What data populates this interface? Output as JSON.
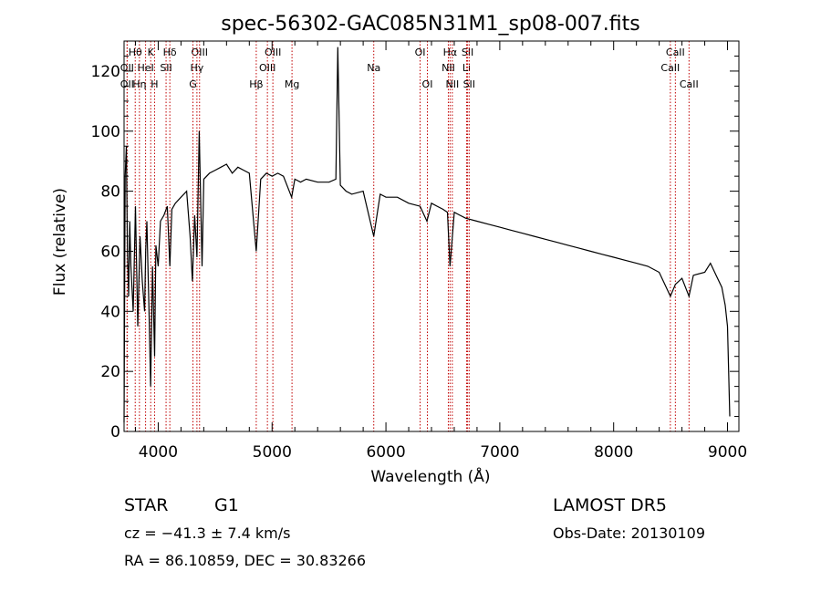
{
  "chart_data": {
    "type": "line",
    "title": "spec-56302-GAC085N31M1_sp08-007.fits",
    "xlabel": "Wavelength (Å)",
    "ylabel": "Flux (relative)",
    "xlim": [
      3700,
      9100
    ],
    "ylim": [
      0,
      130
    ],
    "xticks": [
      4000,
      5000,
      6000,
      7000,
      8000,
      9000
    ],
    "yticks": [
      0,
      20,
      40,
      60,
      80,
      100,
      120
    ],
    "grid": false,
    "series": [
      {
        "x": [
          3700,
          3710,
          3720,
          3730,
          3740,
          3750,
          3760,
          3780,
          3800,
          3820,
          3840,
          3860,
          3880,
          3890,
          3900,
          3920,
          3933,
          3950,
          3968,
          3980,
          4000,
          4020,
          4050,
          4080,
          4102,
          4120,
          4150,
          4200,
          4250,
          4280,
          4300,
          4320,
          4340,
          4360,
          4385,
          4400,
          4450,
          4500,
          4550,
          4600,
          4650,
          4700,
          4750,
          4800,
          4861,
          4900,
          4950,
          5000,
          5050,
          5100,
          5172,
          5200,
          5250,
          5300,
          5400,
          5500,
          5560,
          5577,
          5600,
          5650,
          5700,
          5800,
          5893,
          5950,
          6000,
          6100,
          6200,
          6300,
          6360,
          6400,
          6450,
          6500,
          6540,
          6563,
          6600,
          6650,
          6700,
          6800,
          6900,
          7000,
          7100,
          7200,
          7300,
          7400,
          7500,
          7600,
          7700,
          7800,
          7900,
          8000,
          8100,
          8200,
          8300,
          8400,
          8498,
          8542,
          8600,
          8662,
          8700,
          8800,
          8850,
          8900,
          8950,
          8980,
          9000,
          9020
        ],
        "y": [
          3,
          85,
          95,
          60,
          45,
          70,
          55,
          40,
          75,
          35,
          65,
          50,
          40,
          60,
          70,
          38,
          15,
          55,
          25,
          62,
          55,
          70,
          72,
          75,
          55,
          74,
          76,
          78,
          80,
          65,
          50,
          72,
          58,
          100,
          55,
          84,
          86,
          87,
          88,
          89,
          86,
          88,
          87,
          86,
          60,
          84,
          86,
          85,
          86,
          85,
          78,
          84,
          83,
          84,
          83,
          83,
          84,
          128,
          82,
          80,
          79,
          80,
          65,
          79,
          78,
          78,
          76,
          75,
          70,
          76,
          75,
          74,
          73,
          55,
          73,
          72,
          71,
          70,
          69,
          68,
          67,
          66,
          65,
          64,
          63,
          62,
          61,
          60,
          59,
          58,
          57,
          56,
          55,
          53,
          45,
          49,
          51,
          45,
          52,
          53,
          56,
          52,
          48,
          42,
          35,
          5
        ]
      }
    ],
    "line_markers": [
      {
        "label": "Hθ",
        "x": 3798,
        "row": 1
      },
      {
        "label": "K",
        "x": 3934,
        "row": 1
      },
      {
        "label": "Hδ",
        "x": 4102,
        "row": 1
      },
      {
        "label": "OIII",
        "x": 4363,
        "row": 1
      },
      {
        "label": "OIII",
        "x": 5007,
        "row": 1
      },
      {
        "label": "OI",
        "x": 6300,
        "row": 1
      },
      {
        "label": "Hα",
        "x": 6563,
        "row": 1
      },
      {
        "label": "SII",
        "x": 6717,
        "row": 1
      },
      {
        "label": "CaII",
        "x": 8542,
        "row": 1
      },
      {
        "label": "OII",
        "x": 3727,
        "row": 2
      },
      {
        "label": "HeI",
        "x": 3889,
        "row": 2
      },
      {
        "label": "SII",
        "x": 4069,
        "row": 2
      },
      {
        "label": "Hγ",
        "x": 4340,
        "row": 2
      },
      {
        "label": "OIII",
        "x": 4959,
        "row": 2
      },
      {
        "label": "Na",
        "x": 5893,
        "row": 2
      },
      {
        "label": "NII",
        "x": 6548,
        "row": 2
      },
      {
        "label": "Li",
        "x": 6708,
        "row": 2
      },
      {
        "label": "CaII",
        "x": 8498,
        "row": 2
      },
      {
        "label": "OII",
        "x": 3727,
        "row": 3
      },
      {
        "label": "Hη",
        "x": 3835,
        "row": 3
      },
      {
        "label": "H",
        "x": 3968,
        "row": 3
      },
      {
        "label": "G",
        "x": 4305,
        "row": 3
      },
      {
        "label": "Hβ",
        "x": 4861,
        "row": 3
      },
      {
        "label": "Mg",
        "x": 5175,
        "row": 3
      },
      {
        "label": "OI",
        "x": 6364,
        "row": 3
      },
      {
        "label": "NII",
        "x": 6583,
        "row": 3
      },
      {
        "label": "SII",
        "x": 6731,
        "row": 3
      },
      {
        "label": "CaII",
        "x": 8662,
        "row": 3
      }
    ],
    "info": {
      "class": "STAR",
      "subclass": "G1",
      "survey": "LAMOST DR5",
      "cz": "cz = −41.3 ± 7.4 km/s",
      "obs_date": "Obs-Date: 20130109",
      "coords": "RA =  86.10859, DEC =  30.83266"
    }
  }
}
